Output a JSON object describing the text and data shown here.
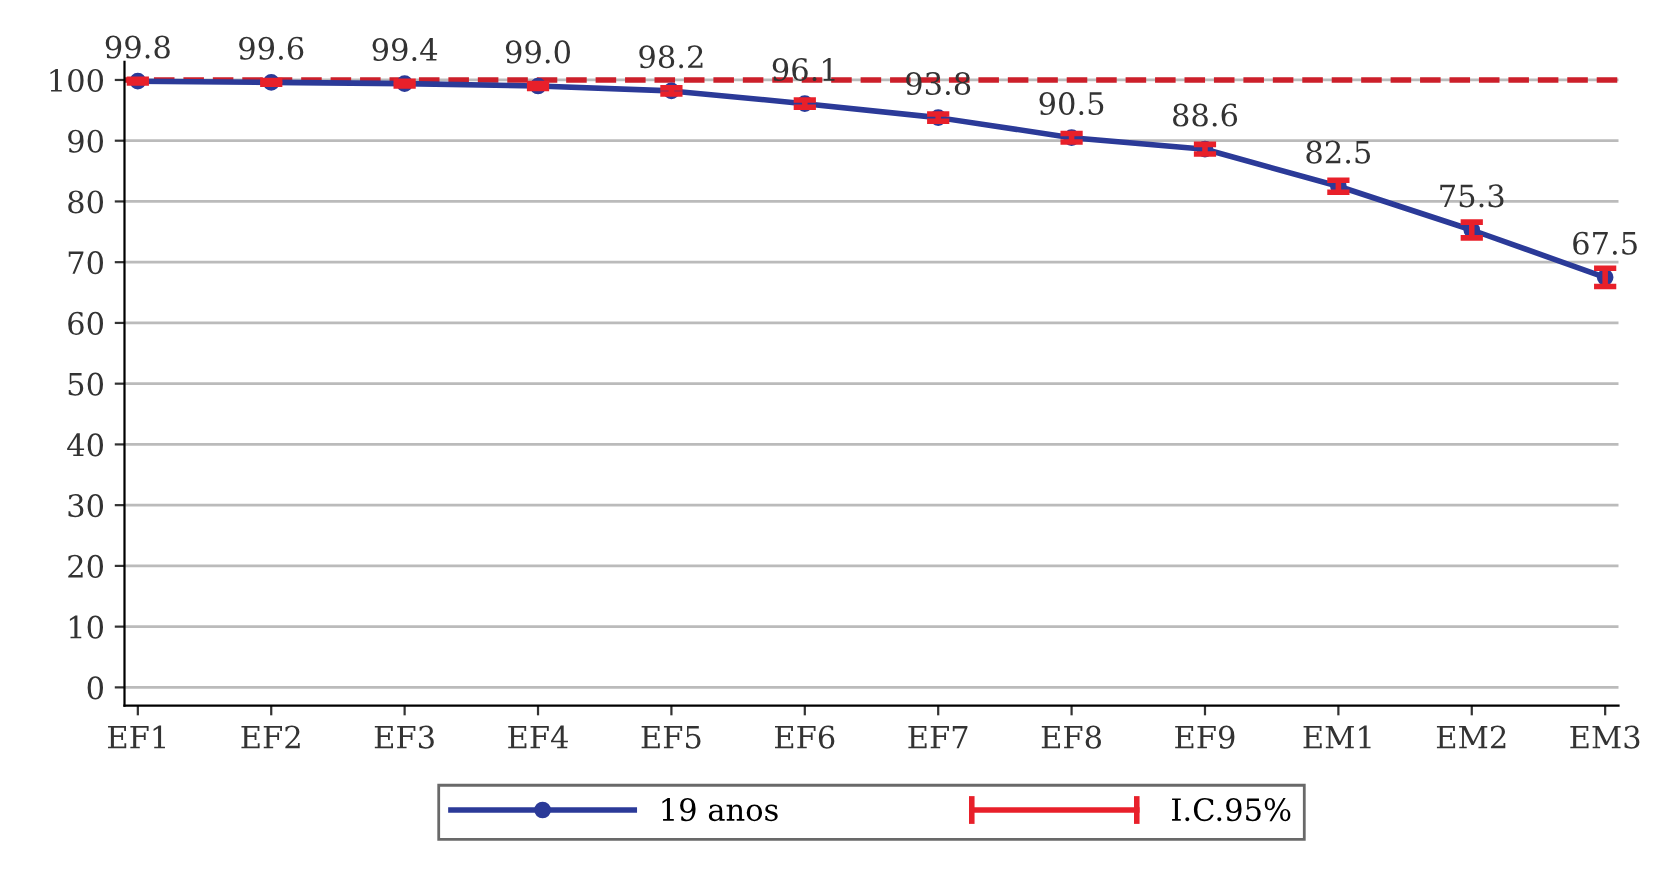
{
  "chart_data": {
    "type": "line",
    "categories": [
      "EF1",
      "EF2",
      "EF3",
      "EF4",
      "EF5",
      "EF6",
      "EF7",
      "EF8",
      "EF9",
      "EM1",
      "EM2",
      "EM3"
    ],
    "series": [
      {
        "name": "19 anos",
        "color": "#2b3a98",
        "values": [
          99.8,
          99.6,
          99.4,
          99.0,
          98.2,
          96.1,
          93.8,
          90.5,
          88.6,
          82.5,
          75.3,
          67.5
        ],
        "errors": [
          0.3,
          0.3,
          0.4,
          0.4,
          0.5,
          0.6,
          0.6,
          0.7,
          0.8,
          1.0,
          1.3,
          1.5
        ],
        "value_labels": [
          "99.8",
          "99.6",
          "99.4",
          "99.0",
          "98.2",
          "96.1",
          "93.8",
          "90.5",
          "88.6",
          "82.5",
          "75.3",
          "67.5"
        ]
      }
    ],
    "annotations": [
      "I.C.95%"
    ],
    "ref_lines": [
      {
        "axis": "y",
        "value": 100,
        "color": "#cc1f2a",
        "line_style": "dashed"
      }
    ],
    "ylim": [
      -3,
      103
    ],
    "yticks": [
      0,
      10,
      20,
      30,
      40,
      50,
      60,
      70,
      80,
      90,
      100
    ],
    "grid": "y",
    "legend": "bottom",
    "marker": "circle",
    "line_style": "solid"
  }
}
